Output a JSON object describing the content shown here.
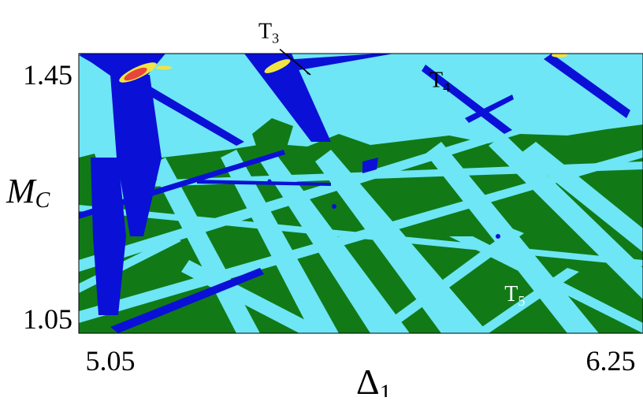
{
  "chart_data": {
    "type": "heatmap",
    "title": "",
    "xlabel": "Δ",
    "xlabel_sub": "1",
    "ylabel": "M",
    "ylabel_sub": "C",
    "xlim": [
      5.05,
      6.25
    ],
    "ylim": [
      1.05,
      1.45
    ],
    "x_ticks": [
      {
        "value": 5.05,
        "label": "5.05"
      },
      {
        "value": 6.25,
        "label": "6.25"
      }
    ],
    "y_ticks": [
      {
        "value": 1.45,
        "label": "1.45"
      },
      {
        "value": 1.05,
        "label": "1.05"
      }
    ],
    "grid": false,
    "legend": "none",
    "regions": [
      {
        "name": "T",
        "sub": "3",
        "color": "#F0E442",
        "label_at": [
          5.43,
          1.51
        ],
        "arrow_to": [
          5.53,
          1.45
        ]
      },
      {
        "name": "T",
        "sub": "4",
        "color": "#6EE6F5",
        "label_at": [
          5.84,
          1.43
        ]
      },
      {
        "name": "T",
        "sub": "5",
        "color": "#117A17",
        "label_at": [
          6.02,
          1.08
        ]
      }
    ],
    "colors": {
      "background": "#6EE6F5",
      "green": "#117A17",
      "blue": "#0A10D6",
      "yellow": "#F0E442",
      "red": "#E8463A",
      "label_on_dark": "#ffffff",
      "label_on_light": "#000000"
    }
  }
}
